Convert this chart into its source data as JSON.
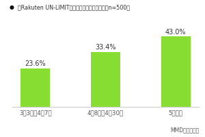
{
  "title": "「Rakuten UN-LIMIT」の申し込みをした時期（n=500）",
  "bullet": "●",
  "categories": [
    "3月3日〜4月7日",
    "4月8日〜4月30日",
    "5月以降"
  ],
  "values": [
    23.6,
    33.4,
    43.0
  ],
  "labels": [
    "23.6%",
    "33.4%",
    "43.0%"
  ],
  "bar_color": "#88dd33",
  "background_color": "#ffffff",
  "ylim": [
    0,
    52
  ],
  "footnote": "MMD研究所調べ",
  "title_fontsize": 5.8,
  "label_fontsize": 7.0,
  "tick_fontsize": 6.2,
  "footnote_fontsize": 5.5,
  "bar_width": 0.42
}
